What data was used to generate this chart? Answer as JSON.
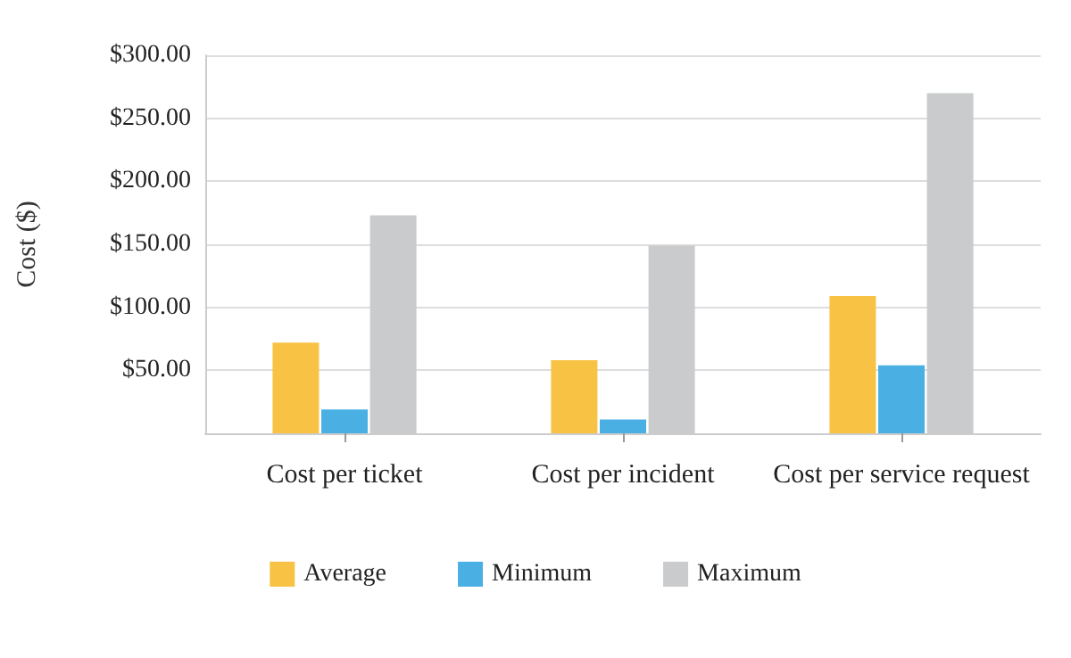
{
  "chart_data": {
    "type": "bar",
    "ylabel": "Cost ($)",
    "categories": [
      "Cost per ticket",
      "Cost per incident",
      "Cost per service request"
    ],
    "series": [
      {
        "name": "Average",
        "color": "#f8c344",
        "values": [
          72,
          58,
          109
        ]
      },
      {
        "name": "Minimum",
        "color": "#4ab0e4",
        "values": [
          19,
          11,
          54
        ]
      },
      {
        "name": "Maximum",
        "color": "#c9cbcd",
        "values": [
          173,
          149,
          270
        ]
      }
    ],
    "ylim": [
      0,
      300
    ],
    "yticks": [
      {
        "value": 0,
        "label": null
      },
      {
        "value": 50,
        "label": "$50.00"
      },
      {
        "value": 100,
        "label": "$100.00"
      },
      {
        "value": 150,
        "label": "$150.00"
      },
      {
        "value": 200,
        "label": "$200.00"
      },
      {
        "value": 250,
        "label": "$250.00"
      },
      {
        "value": 300,
        "label": "$300.00"
      }
    ],
    "grid": "y",
    "legend": "bottom"
  }
}
